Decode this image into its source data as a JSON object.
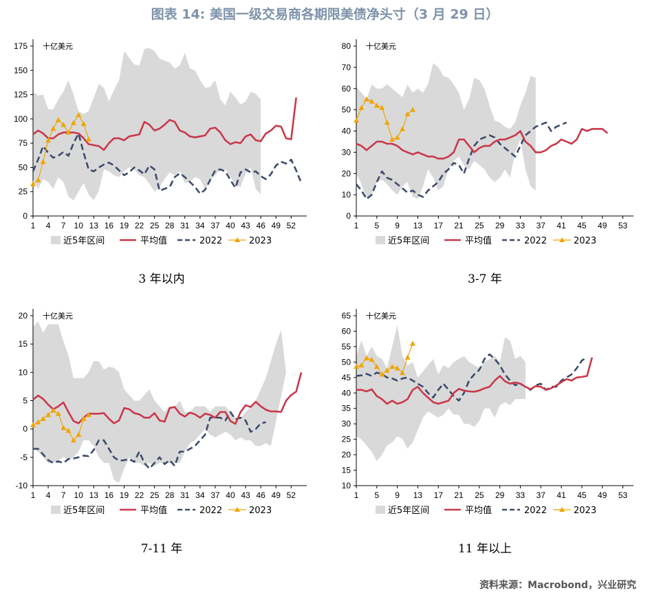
{
  "figure_title": "图表 14: 美国一级交易商各期限美债净头寸（3 月 29 日）",
  "source": "资料来源：Macrobond，兴业研究",
  "colors": {
    "band": "#d9d9d9",
    "avg": "#c9384a",
    "y2022": "#3c4a6b",
    "y2023": "#f0a500",
    "title": "#7d92aa"
  },
  "legend": {
    "band": "近5年区间",
    "avg": "平均值",
    "y2022": "2022",
    "y2023": "2023"
  },
  "chart_data": [
    {
      "type": "line",
      "caption": "3 年以内",
      "unit_label": "十亿美元",
      "xlim": [
        1,
        54
      ],
      "xticks": [
        1,
        4,
        7,
        10,
        13,
        16,
        19,
        22,
        25,
        28,
        31,
        34,
        37,
        40,
        43,
        46,
        49,
        52
      ],
      "ylim": [
        0,
        175
      ],
      "yticks": [
        0,
        25,
        50,
        75,
        100,
        125,
        150,
        175
      ],
      "band_max": [
        128,
        124,
        125,
        110,
        110,
        120,
        128,
        140,
        125,
        108,
        105,
        108,
        122,
        136,
        132,
        118,
        130,
        140,
        170,
        163,
        156,
        155,
        172,
        173,
        170,
        162,
        160,
        158,
        152,
        155,
        168,
        152,
        150,
        140,
        132,
        133,
        140,
        120,
        114,
        128,
        122,
        115,
        118,
        128,
        126,
        120
      ],
      "band_min": [
        38,
        28,
        38,
        35,
        28,
        40,
        35,
        20,
        16,
        25,
        34,
        22,
        16,
        26,
        48,
        46,
        42,
        40,
        46,
        50,
        48,
        42,
        40,
        33,
        25,
        30,
        38,
        45,
        42,
        46,
        34,
        35,
        40,
        38,
        28,
        36,
        42,
        48,
        48,
        40,
        32,
        30,
        44,
        50,
        28,
        22
      ],
      "avg": [
        84,
        88,
        85,
        80,
        80,
        84,
        86,
        86,
        86,
        85,
        80,
        74,
        73,
        72,
        68,
        75,
        80,
        80,
        78,
        82,
        83,
        84,
        97,
        94,
        88,
        90,
        94,
        99,
        97,
        88,
        86,
        82,
        81,
        82,
        83,
        90,
        91,
        86,
        78,
        74,
        76,
        75,
        82,
        84,
        78,
        77,
        85,
        88,
        93,
        92,
        80,
        79,
        122
      ],
      "y2022": [
        46,
        58,
        72,
        65,
        60,
        62,
        66,
        62,
        75,
        85,
        65,
        48,
        46,
        50,
        53,
        55,
        52,
        47,
        42,
        45,
        50,
        47,
        43,
        52,
        48,
        26,
        28,
        30,
        40,
        44,
        40,
        35,
        30,
        23,
        27,
        37,
        47,
        48,
        46,
        37,
        29,
        45,
        48,
        45,
        46,
        41,
        38,
        43,
        52,
        56,
        54,
        58,
        47,
        34
      ],
      "y2023": [
        33,
        37,
        56,
        78,
        90,
        99,
        94,
        86,
        96,
        104,
        95,
        79
      ]
    },
    {
      "type": "line",
      "caption": "3-7 年",
      "unit_label": "十亿美元",
      "xlim": [
        1,
        54
      ],
      "xticks": [
        1,
        5,
        9,
        13,
        17,
        21,
        25,
        29,
        33,
        37,
        41,
        45,
        49,
        53
      ],
      "ylim": [
        0,
        80
      ],
      "yticks": [
        0,
        10,
        20,
        30,
        40,
        50,
        60,
        70,
        80
      ],
      "band_max": [
        61,
        58,
        55,
        62,
        60,
        60,
        62,
        60,
        58,
        56,
        62,
        58,
        60,
        58,
        62,
        72,
        70,
        66,
        65,
        62,
        58,
        50,
        55,
        65,
        64,
        60,
        52,
        45,
        44,
        42,
        41,
        44,
        52,
        58,
        66,
        65
      ],
      "band_min": [
        20,
        15,
        8,
        10,
        16,
        17,
        15,
        12,
        10,
        14,
        16,
        9,
        8,
        14,
        22,
        18,
        12,
        14,
        22,
        26,
        28,
        24,
        22,
        26,
        24,
        22,
        18,
        16,
        18,
        22,
        18,
        30,
        36,
        22,
        14,
        12
      ],
      "avg": [
        34,
        33,
        31,
        33,
        35,
        35,
        34,
        34,
        33,
        31,
        30,
        29,
        30,
        29,
        28,
        28,
        27,
        27,
        28,
        30,
        36,
        36,
        33,
        30,
        32,
        33,
        33,
        35,
        36,
        36,
        37,
        38,
        40,
        35,
        33,
        30,
        30,
        31,
        33,
        34,
        36,
        35,
        34,
        36,
        41,
        40,
        41,
        41,
        41,
        39
      ],
      "y2022": [
        15,
        12,
        8,
        10,
        16,
        21,
        18,
        17,
        15,
        13,
        11,
        12,
        10,
        9,
        12,
        14,
        16,
        20,
        22,
        25,
        24,
        20,
        27,
        33,
        36,
        37,
        38,
        37,
        34,
        32,
        30,
        28,
        33,
        38,
        40,
        42,
        43,
        44,
        40,
        42,
        43,
        44
      ],
      "y2023": [
        45,
        51,
        55,
        54,
        52,
        51,
        44,
        36,
        37,
        41,
        48,
        50
      ]
    },
    {
      "type": "line",
      "caption": "7-11 年",
      "unit_label": "十亿美元",
      "xlim": [
        1,
        54
      ],
      "xticks": [
        1,
        4,
        7,
        10,
        13,
        16,
        19,
        22,
        25,
        28,
        31,
        34,
        37,
        40,
        43,
        46,
        49,
        52
      ],
      "ylim": [
        -10,
        20
      ],
      "yticks": [
        -10,
        -5,
        0,
        5,
        10,
        15,
        20
      ],
      "band_max": [
        18,
        19,
        17,
        18.5,
        18.5,
        18.5,
        15.5,
        13,
        9,
        9,
        9,
        10,
        12,
        12,
        10.5,
        11,
        10.8,
        10,
        7,
        6,
        5,
        5,
        6,
        7,
        5,
        4,
        3,
        4,
        4,
        5,
        3,
        3,
        4,
        4,
        4,
        3,
        4,
        4,
        4,
        3,
        2,
        2,
        3,
        4,
        5,
        7,
        9,
        12,
        15,
        17.5,
        10
      ],
      "band_min": [
        -3.5,
        -4,
        -5,
        -6,
        -6,
        -5.5,
        -5,
        -5.5,
        -5,
        -4,
        -2,
        -2,
        -3,
        -5,
        -6,
        -6,
        -9,
        -9.5,
        -7,
        -5,
        -6,
        -6,
        -6.5,
        -6,
        -6.5,
        -6,
        -6,
        -6,
        -6,
        -6,
        -4,
        -2.5,
        -2,
        -1,
        0,
        -1,
        -1.5,
        -1,
        -0.5,
        -1,
        -2,
        -1.5,
        -2,
        -2,
        -3,
        -3,
        -2.5,
        -3
      ],
      "avg": [
        5.2,
        5.9,
        5.3,
        4.3,
        3.5,
        4,
        4.7,
        3,
        1.4,
        1,
        2,
        2.7,
        2.7,
        2.7,
        2.8,
        1.8,
        1,
        1.5,
        3.7,
        3.5,
        2.8,
        2.6,
        2,
        2,
        2.8,
        1.5,
        1.3,
        3.7,
        3.9,
        2.7,
        2.2,
        2.9,
        2.6,
        2,
        2.7,
        2.5,
        2,
        3,
        3,
        1.4,
        0.9,
        3,
        4.2,
        3.9,
        4.8,
        4,
        3.4,
        3.1,
        3.1,
        3,
        5,
        6,
        6.6,
        10
      ],
      "y2022": [
        -3.5,
        -3.5,
        -4.5,
        -5.5,
        -6,
        -5.7,
        -6,
        -5.3,
        -5.2,
        -5,
        -4.7,
        -4.8,
        -3.7,
        -2,
        -2,
        -3.5,
        -5,
        -5.6,
        -5.5,
        -5.3,
        -5.8,
        -4,
        -6,
        -7,
        -6,
        -5,
        -6.2,
        -5.5,
        -6.5,
        -4,
        -4,
        -3.5,
        -3,
        -2,
        -1,
        2,
        2,
        2,
        1.5,
        3,
        1.7,
        2,
        1.5,
        -0.5,
        0,
        1,
        1.2
      ],
      "y2023": [
        0.7,
        1.2,
        1.8,
        2.5,
        3.3,
        2.7,
        0.2,
        -0.3,
        -2,
        -1,
        1.8,
        2.5
      ]
    },
    {
      "type": "line",
      "caption": "11 年以上",
      "unit_label": "十亿美元",
      "xlim": [
        1,
        54
      ],
      "xticks": [
        1,
        5,
        9,
        13,
        17,
        21,
        25,
        29,
        33,
        37,
        41,
        45,
        49,
        53
      ],
      "ylim": [
        10,
        65
      ],
      "yticks": [
        10,
        15,
        20,
        25,
        30,
        35,
        40,
        45,
        50,
        55,
        60,
        65
      ],
      "band_max": [
        52,
        57,
        52,
        55,
        52,
        51,
        48,
        55,
        62,
        52,
        49,
        50,
        45,
        47,
        49,
        51,
        46,
        49,
        48,
        50,
        51,
        52,
        50,
        49,
        48,
        50,
        51,
        52,
        50,
        58,
        57,
        51,
        52,
        50
      ],
      "band_min": [
        26,
        25,
        23,
        21,
        18,
        20,
        23,
        24,
        26,
        25,
        22,
        24,
        28,
        32,
        34,
        33,
        32,
        33,
        35,
        33,
        33,
        30,
        30,
        29,
        31,
        35,
        35,
        32,
        36,
        37,
        36,
        38,
        38,
        38
      ],
      "avg": [
        41,
        41,
        40.5,
        41.2,
        39,
        38,
        36.5,
        37.5,
        36.5,
        37,
        38,
        41,
        42,
        40,
        38.5,
        37,
        36.5,
        37,
        37.5,
        40,
        41.3,
        40.8,
        40.5,
        40.4,
        40.8,
        41.5,
        42,
        44,
        45.5,
        43.8,
        43,
        43.4,
        43,
        42,
        41.2,
        42.2,
        42,
        41,
        41.5,
        42.4,
        43.5,
        44.5,
        44,
        45,
        45.2,
        45.5,
        51.5
      ],
      "y2022": [
        45.5,
        45.7,
        46.2,
        45.5,
        46.6,
        46,
        45,
        44.7,
        44,
        44.7,
        45,
        44,
        43,
        42,
        40,
        38.5,
        41,
        43,
        41,
        39,
        37.5,
        40,
        44,
        46,
        47.5,
        51,
        52.5,
        51,
        49,
        46,
        44,
        42.5,
        43,
        42,
        41,
        42.5,
        43,
        41,
        42,
        42,
        44,
        45,
        46,
        48,
        50.5,
        51.5
      ],
      "y2023": [
        48.5,
        49,
        51.3,
        50.8,
        48.5,
        46,
        47.3,
        48.5,
        48,
        46.5,
        51.5,
        56
      ]
    }
  ]
}
